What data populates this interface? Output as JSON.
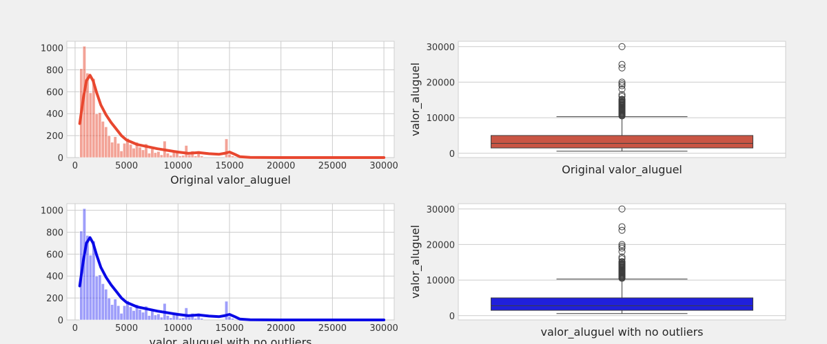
{
  "chart_data": [
    {
      "type": "bar",
      "subtype": "histogram-with-kde",
      "xlabel": "Original valor_aluguel",
      "ylabel": "",
      "xlim": [
        -800,
        31000
      ],
      "ylim": [
        0,
        1060
      ],
      "xticks": [
        0,
        5000,
        10000,
        15000,
        20000,
        25000,
        30000
      ],
      "yticks": [
        0,
        200,
        400,
        600,
        800,
        1000
      ],
      "grid": true,
      "bar_color": "#e8472f",
      "kde_color": "#e8472f",
      "bin_start": 450,
      "bin_width": 300,
      "counts": [
        810,
        1015,
        770,
        590,
        720,
        400,
        410,
        330,
        280,
        200,
        140,
        190,
        130,
        60,
        130,
        175,
        120,
        85,
        140,
        95,
        70,
        125,
        40,
        80,
        45,
        55,
        25,
        150,
        40,
        20,
        55,
        50,
        15,
        20,
        110,
        25,
        60,
        15,
        60,
        15,
        0,
        0,
        0,
        0,
        0,
        0,
        0,
        170,
        30,
        15
      ],
      "kde": {
        "x": [
          450,
          800,
          1100,
          1450,
          1750,
          2100,
          2500,
          3000,
          3500,
          4000,
          4500,
          5000,
          6000,
          7000,
          8000,
          9000,
          10000,
          11000,
          12000,
          13000,
          14000,
          14600,
          15000,
          15500,
          16000,
          17000,
          20000,
          25000,
          30000
        ],
        "y": [
          310,
          540,
          700,
          750,
          700,
          590,
          480,
          390,
          320,
          260,
          200,
          160,
          120,
          100,
          80,
          65,
          50,
          38,
          45,
          35,
          30,
          40,
          50,
          30,
          8,
          2,
          0,
          0,
          0
        ]
      }
    },
    {
      "type": "box",
      "xlabel": "Original valor_aluguel",
      "ylabel": "valor_aluguel",
      "ylim": [
        -1200,
        31500
      ],
      "yticks": [
        0,
        10000,
        20000,
        30000
      ],
      "grid": true,
      "box_color": "#c95544",
      "min": 600,
      "q1": 1500,
      "median": 2800,
      "q3": 5000,
      "max": 10300,
      "outliers": [
        30000,
        25000,
        24000,
        20000,
        19500,
        19000,
        18000,
        16500,
        16000,
        15200,
        15000,
        14700,
        14500,
        14300,
        14100,
        13900,
        13700,
        13500,
        13300,
        13100,
        12900,
        12700,
        12500,
        12300,
        12100,
        11900,
        11700,
        11500,
        11300,
        11100,
        10900,
        10700,
        10500
      ]
    },
    {
      "type": "bar",
      "subtype": "histogram-with-kde",
      "xlabel": "valor_aluguel with no outliers",
      "ylabel": "",
      "xlim": [
        -800,
        31000
      ],
      "ylim": [
        0,
        1060
      ],
      "xticks": [
        0,
        5000,
        10000,
        15000,
        20000,
        25000,
        30000
      ],
      "yticks": [
        0,
        200,
        400,
        600,
        800,
        1000
      ],
      "grid": true,
      "bar_color": "#3e3ef5",
      "kde_color": "#0a0ae6",
      "bin_start": 450,
      "bin_width": 300,
      "counts": [
        810,
        1015,
        770,
        590,
        720,
        400,
        410,
        330,
        280,
        200,
        140,
        190,
        130,
        60,
        130,
        175,
        120,
        85,
        140,
        95,
        70,
        125,
        40,
        80,
        45,
        55,
        25,
        150,
        40,
        20,
        55,
        50,
        15,
        20,
        110,
        25,
        60,
        15,
        60,
        15,
        0,
        0,
        0,
        0,
        0,
        0,
        0,
        170,
        30,
        15
      ],
      "kde": {
        "x": [
          450,
          800,
          1100,
          1450,
          1750,
          2100,
          2500,
          3000,
          3500,
          4000,
          4500,
          5000,
          6000,
          7000,
          8000,
          9000,
          10000,
          11000,
          12000,
          13000,
          14000,
          14600,
          15000,
          15500,
          16000,
          17000,
          20000,
          25000,
          30000
        ],
        "y": [
          310,
          540,
          700,
          750,
          700,
          590,
          480,
          390,
          320,
          260,
          200,
          160,
          120,
          100,
          80,
          65,
          50,
          38,
          45,
          35,
          30,
          40,
          50,
          30,
          8,
          2,
          0,
          0,
          0
        ]
      }
    },
    {
      "type": "box",
      "xlabel": "valor_aluguel with no outliers",
      "ylabel": "valor_aluguel",
      "ylim": [
        -1200,
        31500
      ],
      "yticks": [
        0,
        10000,
        20000,
        30000
      ],
      "grid": true,
      "box_color": "#2020dc",
      "min": 600,
      "q1": 1500,
      "median": 2800,
      "q3": 5000,
      "max": 10300,
      "outliers": [
        30000,
        25000,
        24000,
        20000,
        19500,
        19000,
        18000,
        16500,
        16000,
        15200,
        15000,
        14700,
        14500,
        14300,
        14100,
        13900,
        13700,
        13500,
        13300,
        13100,
        12900,
        12700,
        12500,
        12300,
        12100,
        11900,
        11700,
        11500,
        11300,
        11100,
        10900,
        10700,
        10500
      ]
    }
  ]
}
